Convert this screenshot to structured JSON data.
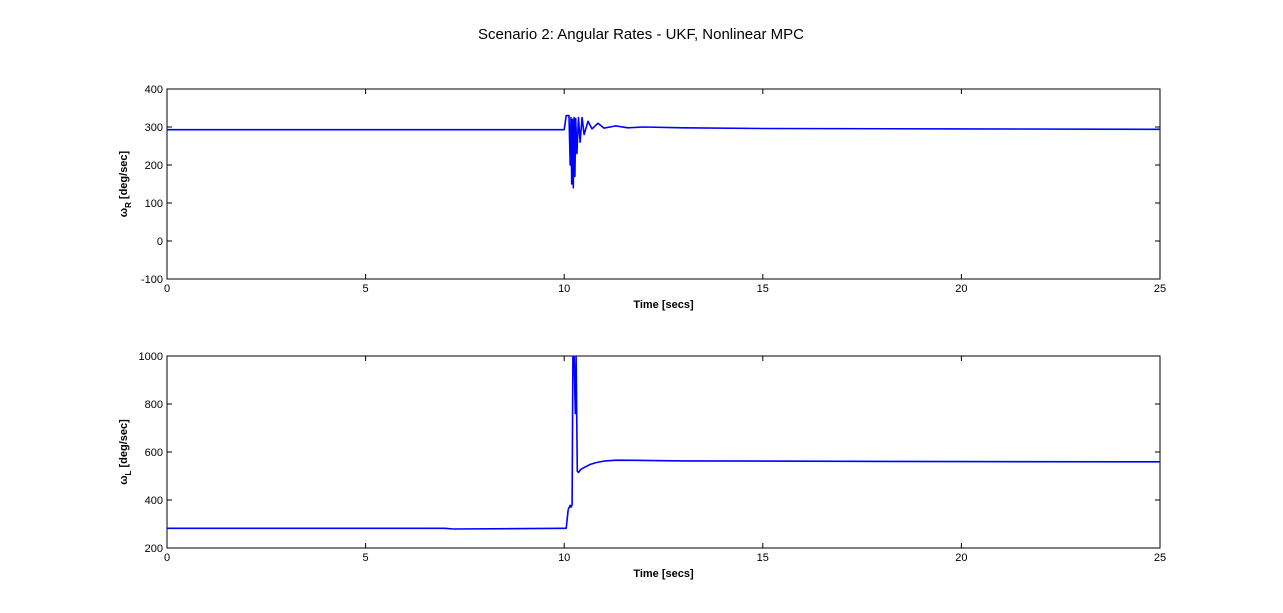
{
  "title": "Scenario 2: Angular Rates - UKF, Nonlinear MPC",
  "colors": {
    "series": "#0000ff",
    "axes": "#000000",
    "background": "#ffffff"
  },
  "chart_data": [
    {
      "type": "line",
      "ylabel_main": "ω",
      "ylabel_sub": "R",
      "ylabel_unit": " [deg/sec]",
      "xlabel": "Time [secs]",
      "xlim": [
        0,
        25
      ],
      "ylim": [
        -100,
        400
      ],
      "xticks": [
        0,
        5,
        10,
        15,
        20,
        25
      ],
      "yticks": [
        -100,
        0,
        100,
        200,
        300,
        400
      ],
      "grid": false,
      "series": [
        {
          "x": [
            0,
            10.0,
            10.05,
            10.12,
            10.15,
            10.17,
            10.19,
            10.21,
            10.23,
            10.25,
            10.27,
            10.29,
            10.32,
            10.36,
            10.4,
            10.45,
            10.5,
            10.6,
            10.7,
            10.85,
            11.0,
            11.3,
            11.6,
            12.0,
            13.0,
            15.0,
            20.0,
            25.0
          ],
          "y": [
            293,
            293,
            330,
            330,
            200,
            325,
            150,
            320,
            140,
            325,
            170,
            322,
            230,
            325,
            260,
            325,
            280,
            315,
            295,
            310,
            297,
            303,
            298,
            300,
            298,
            296,
            295,
            294
          ]
        }
      ]
    },
    {
      "type": "line",
      "ylabel_main": "ω",
      "ylabel_sub": "L",
      "ylabel_unit": " [deg/sec]",
      "xlabel": "Time [secs]",
      "xlim": [
        0,
        25
      ],
      "ylim": [
        200,
        1000
      ],
      "xticks": [
        0,
        5,
        10,
        15,
        20,
        25
      ],
      "yticks": [
        200,
        400,
        600,
        800,
        1000
      ],
      "grid": false,
      "series": [
        {
          "x": [
            0,
            7.0,
            7.2,
            10.0,
            10.05,
            10.1,
            10.15,
            10.17,
            10.2,
            10.22,
            10.25,
            10.28,
            10.3,
            10.33,
            10.36,
            10.42,
            10.5,
            10.65,
            10.8,
            11.0,
            11.3,
            12.0,
            13.0,
            15.0,
            20.0,
            25.0
          ],
          "y": [
            282,
            282,
            279,
            282,
            282,
            360,
            378,
            370,
            380,
            1000,
            1000,
            760,
            1000,
            520,
            515,
            528,
            535,
            548,
            556,
            562,
            566,
            565,
            563,
            562,
            560,
            559
          ]
        }
      ]
    }
  ]
}
